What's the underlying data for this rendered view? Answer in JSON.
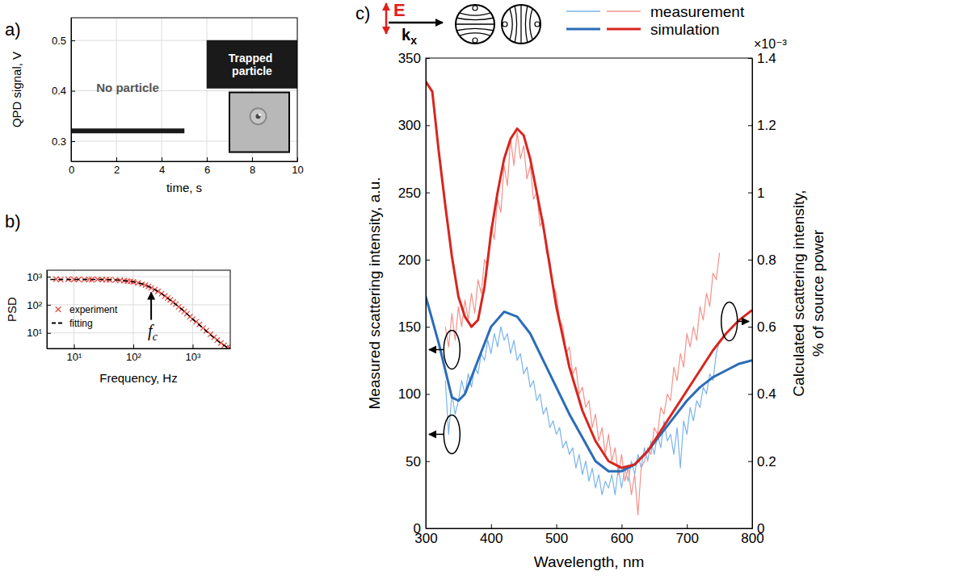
{
  "chart_data": [
    {
      "panel": "a)",
      "type": "area",
      "xlabel": "time, s",
      "ylabel": "QPD signal, V",
      "xlim": [
        0,
        10
      ],
      "ylim": [
        0.26,
        0.545
      ],
      "xticks": [
        0,
        2,
        4,
        6,
        8,
        10
      ],
      "yticks": [
        0.3,
        0.4,
        0.5
      ],
      "grid": true,
      "series": [
        {
          "x": [
            0,
            5
          ],
          "lower": [
            0.316,
            0.316
          ],
          "upper": [
            0.325,
            0.325
          ],
          "color": "#1a1a1a"
        },
        {
          "x": [
            6,
            10
          ],
          "lower": [
            0.405,
            0.405
          ],
          "upper": [
            0.5,
            0.5
          ],
          "color": "#1a1a1a"
        }
      ],
      "annotations": [
        "No particle",
        "Trapped particle"
      ]
    },
    {
      "panel": "b)",
      "type": "scatter",
      "xlabel": "Frequency, Hz",
      "ylabel": "PSD",
      "log": true,
      "xlim": [
        3.5,
        4300
      ],
      "ylim": [
        2.8,
        1700
      ],
      "xticks": [
        {
          "value": 10,
          "label": "10¹"
        },
        {
          "value": 100,
          "label": "10²"
        },
        {
          "value": 1000,
          "label": "10³"
        }
      ],
      "yticks": [
        {
          "value": 10,
          "label": "10¹"
        },
        {
          "value": 100,
          "label": "10²"
        },
        {
          "value": 1000,
          "label": "10³"
        }
      ],
      "grid": true,
      "legend": "left",
      "series": [
        {
          "name": "experiment",
          "type": "scatter",
          "marker": "x",
          "color": "#e8433a",
          "x": [
            5,
            6,
            8,
            10,
            12,
            15,
            18,
            20,
            25,
            30,
            35,
            40,
            50,
            60,
            70,
            80,
            90,
            100,
            120,
            140,
            160,
            180,
            200,
            230,
            260,
            300,
            340,
            380,
            420,
            470,
            520,
            580,
            650,
            720,
            800,
            900,
            1000,
            1150,
            1300,
            1500,
            1700,
            2000,
            2300,
            2600,
            3000,
            3400,
            3800,
            4200
          ],
          "values": [
            820,
            790,
            810,
            795,
            805,
            790,
            800,
            780,
            805,
            785,
            790,
            770,
            760,
            740,
            720,
            700,
            680,
            650,
            600,
            540,
            500,
            450,
            400,
            350,
            300,
            250,
            205,
            175,
            150,
            125,
            105,
            85,
            70,
            58,
            48,
            38,
            31,
            25,
            20,
            15,
            12,
            9,
            7,
            5.6,
            4.4,
            3.6,
            3.0,
            2.9
          ]
        },
        {
          "name": "fitting",
          "type": "line",
          "line_style": "dashed",
          "color": "#000000",
          "x": [
            4,
            10,
            30,
            60,
            100,
            150,
            200,
            300,
            500,
            700,
            1000,
            1500,
            2000,
            3000,
            4000
          ],
          "values": [
            800,
            800,
            795,
            760,
            660,
            530,
            410,
            250,
            110,
            62,
            31,
            14.5,
            8.5,
            4.2,
            2.9
          ]
        }
      ],
      "annotation": {
        "text": "f",
        "subscript": "c",
        "x": 200
      }
    },
    {
      "panel": "c)",
      "type": "line",
      "xlabel": "Wavelength, nm",
      "ylabel": "Measured scattering intensity, a.u.",
      "y2label": [
        "Calculated scattering intensity,",
        "% of source power"
      ],
      "xlim": [
        300,
        800
      ],
      "ylim": [
        0,
        350
      ],
      "y2lim": [
        0,
        1.4
      ],
      "xticks": [
        300,
        400,
        500,
        600,
        700,
        800
      ],
      "yticks": [
        0,
        50,
        100,
        150,
        200,
        250,
        300,
        350
      ],
      "y2ticks": [
        0,
        0.2,
        0.4,
        0.6,
        0.8,
        1,
        1.2,
        1.4
      ],
      "grid": false,
      "legend": "top right",
      "annotations": {
        "field": "E",
        "wavevector": "k",
        "wavevector_subscript": "x",
        "y2_multiplier": "×10⁻³"
      },
      "series": [
        {
          "name": "measurement",
          "color": "#7ab4ea",
          "axis": "y",
          "x": [
            330,
            335,
            340,
            345,
            350,
            355,
            360,
            365,
            370,
            375,
            380,
            385,
            390,
            395,
            400,
            405,
            410,
            415,
            420,
            425,
            430,
            435,
            440,
            445,
            450,
            455,
            460,
            465,
            470,
            475,
            480,
            485,
            490,
            495,
            500,
            505,
            510,
            515,
            520,
            525,
            530,
            535,
            540,
            545,
            550,
            555,
            560,
            565,
            570,
            575,
            580,
            585,
            590,
            595,
            600,
            605,
            610,
            615,
            620,
            625,
            630,
            635,
            640,
            645,
            650,
            655,
            660,
            665,
            670,
            675,
            680,
            685,
            690,
            695,
            700,
            705,
            710,
            715,
            720,
            725,
            730,
            735,
            740,
            745,
            750
          ],
          "values": [
            110,
            70,
            100,
            85,
            95,
            110,
            100,
            115,
            105,
            120,
            115,
            130,
            125,
            140,
            130,
            145,
            135,
            150,
            140,
            145,
            130,
            140,
            125,
            130,
            115,
            120,
            105,
            110,
            95,
            100,
            85,
            90,
            75,
            80,
            70,
            75,
            60,
            65,
            55,
            60,
            45,
            55,
            40,
            50,
            35,
            45,
            30,
            40,
            25,
            35,
            30,
            40,
            25,
            45,
            30,
            45,
            35,
            50,
            40,
            55,
            45,
            60,
            50,
            65,
            55,
            70,
            60,
            80,
            65,
            70,
            55,
            75,
            45,
            80,
            70,
            90,
            80,
            95,
            90,
            105,
            100,
            115,
            110,
            130,
            140
          ]
        },
        {
          "name": "measurement",
          "color": "#f4928a",
          "axis": "y",
          "x": [
            330,
            335,
            340,
            345,
            350,
            355,
            360,
            365,
            370,
            375,
            380,
            385,
            390,
            395,
            400,
            405,
            410,
            415,
            420,
            425,
            430,
            435,
            440,
            445,
            450,
            455,
            460,
            465,
            470,
            475,
            480,
            485,
            490,
            495,
            500,
            505,
            510,
            515,
            520,
            525,
            530,
            535,
            540,
            545,
            550,
            555,
            560,
            565,
            570,
            575,
            580,
            585,
            590,
            595,
            600,
            605,
            610,
            615,
            620,
            625,
            630,
            635,
            640,
            645,
            650,
            655,
            660,
            665,
            670,
            675,
            680,
            685,
            690,
            695,
            700,
            705,
            710,
            715,
            720,
            725,
            730,
            735,
            740,
            745,
            750
          ],
          "values": [
            150,
            135,
            160,
            140,
            165,
            150,
            170,
            155,
            175,
            160,
            185,
            175,
            200,
            195,
            225,
            215,
            245,
            235,
            270,
            255,
            290,
            270,
            295,
            275,
            285,
            260,
            270,
            245,
            250,
            225,
            230,
            205,
            200,
            180,
            175,
            155,
            150,
            130,
            135,
            115,
            120,
            100,
            105,
            90,
            95,
            75,
            85,
            65,
            75,
            55,
            70,
            50,
            60,
            40,
            55,
            35,
            45,
            25,
            40,
            10,
            45,
            50,
            60,
            55,
            75,
            70,
            90,
            85,
            100,
            95,
            120,
            110,
            130,
            120,
            145,
            135,
            150,
            140,
            165,
            155,
            175,
            165,
            190,
            185,
            205
          ]
        },
        {
          "name": "simulation",
          "color": "#2b6cb8",
          "axis": "y2",
          "x": [
            300,
            320,
            340,
            350,
            360,
            380,
            400,
            420,
            440,
            460,
            480,
            500,
            520,
            540,
            560,
            580,
            600,
            620,
            640,
            660,
            680,
            700,
            720,
            740,
            760,
            780,
            800
          ],
          "values": [
            0.69,
            0.55,
            0.39,
            0.38,
            0.4,
            0.5,
            0.6,
            0.645,
            0.63,
            0.58,
            0.5,
            0.42,
            0.34,
            0.27,
            0.2,
            0.17,
            0.17,
            0.19,
            0.23,
            0.28,
            0.33,
            0.38,
            0.42,
            0.45,
            0.47,
            0.49,
            0.5
          ]
        },
        {
          "name": "simulation",
          "color": "#d7261e",
          "axis": "y2",
          "x": [
            300,
            310,
            320,
            330,
            340,
            350,
            360,
            370,
            380,
            390,
            400,
            410,
            420,
            430,
            440,
            450,
            460,
            470,
            480,
            490,
            500,
            520,
            540,
            560,
            580,
            600,
            620,
            640,
            660,
            680,
            700,
            720,
            740,
            760,
            780,
            800
          ],
          "values": [
            1.33,
            1.3,
            1.12,
            0.96,
            0.81,
            0.69,
            0.63,
            0.6,
            0.62,
            0.72,
            0.88,
            1.0,
            1.1,
            1.16,
            1.19,
            1.17,
            1.1,
            1.0,
            0.9,
            0.78,
            0.66,
            0.48,
            0.35,
            0.26,
            0.2,
            0.18,
            0.19,
            0.23,
            0.29,
            0.35,
            0.41,
            0.47,
            0.53,
            0.58,
            0.62,
            0.65
          ]
        }
      ]
    }
  ]
}
